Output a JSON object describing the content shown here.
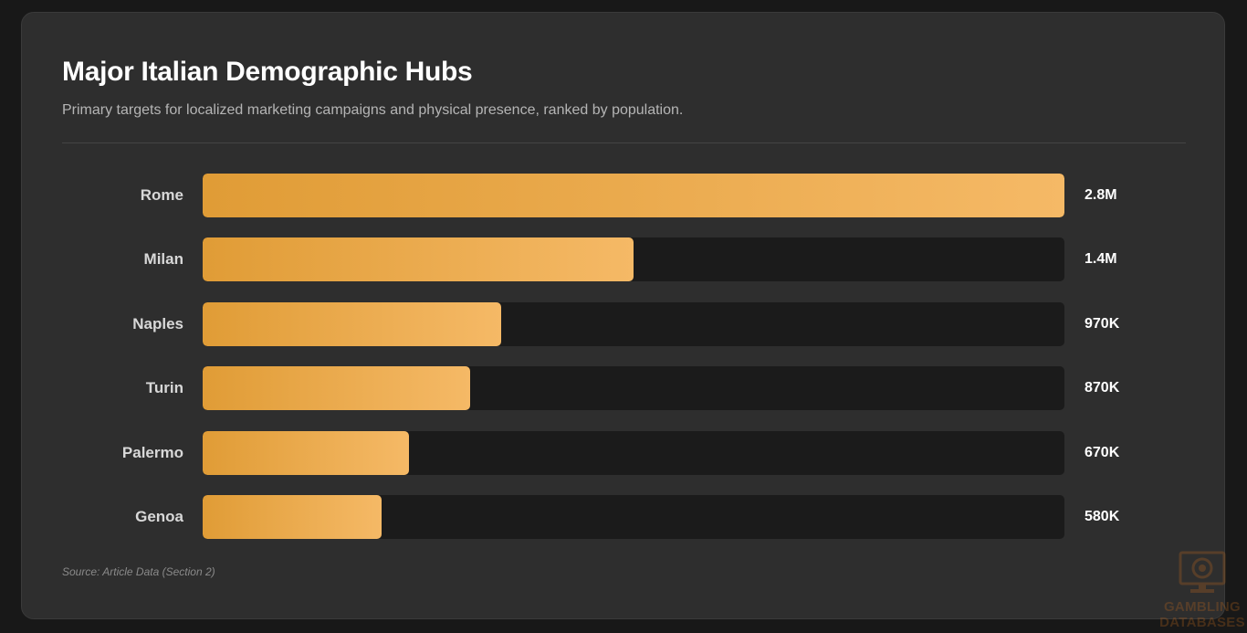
{
  "header": {
    "title": "Major Italian Demographic Hubs",
    "subtitle": "Primary targets for localized marketing campaigns and physical presence, ranked by population."
  },
  "chart_data": {
    "type": "bar",
    "orientation": "horizontal",
    "categories": [
      "Rome",
      "Milan",
      "Naples",
      "Turin",
      "Palermo",
      "Genoa"
    ],
    "values": [
      2800000,
      1400000,
      970000,
      870000,
      670000,
      580000
    ],
    "value_labels": [
      "2.8M",
      "1.4M",
      "970K",
      "870K",
      "670K",
      "580K"
    ],
    "xlim": [
      0,
      2800000
    ],
    "title": "Major Italian Demographic Hubs",
    "subtitle": "Primary targets for localized marketing campaigns and physical presence, ranked by population.",
    "grid": false,
    "legend": "none",
    "colors": {
      "bar_start": "#e09c36",
      "bar_end": "#f5b966",
      "track": "#1b1b1b"
    }
  },
  "footer": {
    "source": "Source: Article Data (Section 2)"
  },
  "watermark": {
    "line1": "GAMBLING",
    "line2": "DATABASES",
    "icon": "casino-monitor-icon"
  }
}
